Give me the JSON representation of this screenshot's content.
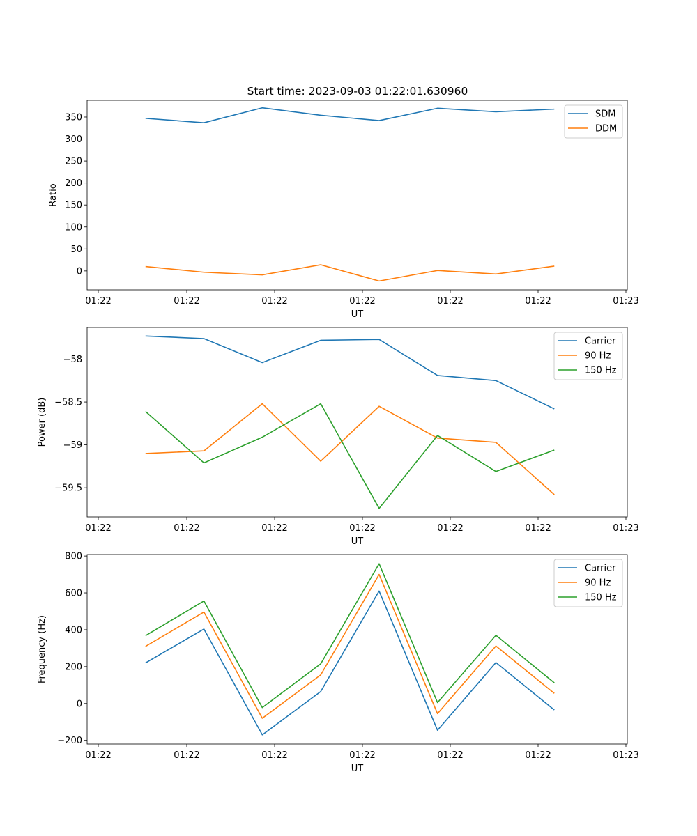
{
  "figure_title": "Start time: 2023-09-03 01:22:01.630960",
  "chart_data": [
    {
      "type": "line",
      "title": "Start time: 2023-09-03 01:22:01.630960",
      "xlabel": "UT",
      "ylabel": "Ratio",
      "x_tick_labels": [
        "01:22",
        "01:22",
        "01:22",
        "01:22",
        "01:22",
        "01:22",
        "01:22"
      ],
      "x_edge_tick_label": "01:23",
      "x": [
        1,
        2,
        3,
        4,
        5,
        6,
        7,
        8
      ],
      "xlim": [
        0,
        9.25
      ],
      "ylim": [
        -43,
        388
      ],
      "yticks": [
        0,
        50,
        100,
        150,
        200,
        250,
        300,
        350
      ],
      "legend_position": "upper right",
      "series": [
        {
          "name": "SDM",
          "color": "#1f77b4",
          "values": [
            347,
            337,
            371,
            354,
            342,
            370,
            362,
            368
          ]
        },
        {
          "name": "DDM",
          "color": "#ff7f0e",
          "values": [
            10,
            -3,
            -9,
            14,
            -23,
            1,
            -7,
            11
          ]
        }
      ]
    },
    {
      "type": "line",
      "title": "",
      "xlabel": "UT",
      "ylabel": "Power (dB)",
      "x_tick_labels": [
        "01:22",
        "01:22",
        "01:22",
        "01:22",
        "01:22",
        "01:22",
        "01:22"
      ],
      "x_edge_tick_label": "01:23",
      "x": [
        1,
        2,
        3,
        4,
        5,
        6,
        7,
        8
      ],
      "xlim": [
        0,
        9.25
      ],
      "ylim": [
        -59.84,
        -57.63
      ],
      "yticks": [
        -59.5,
        -59.0,
        -58.5,
        -58.0
      ],
      "legend_position": "upper right",
      "series": [
        {
          "name": "Carrier",
          "color": "#1f77b4",
          "values": [
            -57.73,
            -57.76,
            -58.04,
            -57.78,
            -57.77,
            -58.19,
            -58.25,
            -58.58
          ]
        },
        {
          "name": "90 Hz",
          "color": "#ff7f0e",
          "values": [
            -59.1,
            -59.07,
            -58.52,
            -59.19,
            -58.55,
            -58.92,
            -58.97,
            -59.58
          ]
        },
        {
          "name": "150 Hz",
          "color": "#2ca02c",
          "values": [
            -58.61,
            -59.21,
            -58.91,
            -58.52,
            -59.74,
            -58.89,
            -59.31,
            -59.06
          ]
        }
      ]
    },
    {
      "type": "line",
      "title": "",
      "xlabel": "UT",
      "ylabel": "Frequency (Hz)",
      "x_tick_labels": [
        "01:22",
        "01:22",
        "01:22",
        "01:22",
        "01:22",
        "01:22",
        "01:22"
      ],
      "x_edge_tick_label": "01:23",
      "x": [
        1,
        2,
        3,
        4,
        5,
        6,
        7,
        8
      ],
      "xlim": [
        0,
        9.25
      ],
      "ylim": [
        -220,
        808
      ],
      "yticks": [
        -200,
        0,
        200,
        400,
        600,
        800
      ],
      "legend_position": "upper right",
      "series": [
        {
          "name": "Carrier",
          "color": "#1f77b4",
          "values": [
            220,
            404,
            -170,
            65,
            610,
            -145,
            222,
            -35
          ]
        },
        {
          "name": "90 Hz",
          "color": "#ff7f0e",
          "values": [
            310,
            496,
            -80,
            155,
            700,
            -55,
            312,
            55
          ]
        },
        {
          "name": "150 Hz",
          "color": "#2ca02c",
          "values": [
            368,
            556,
            -22,
            215,
            758,
            5,
            370,
            112
          ]
        }
      ]
    }
  ]
}
